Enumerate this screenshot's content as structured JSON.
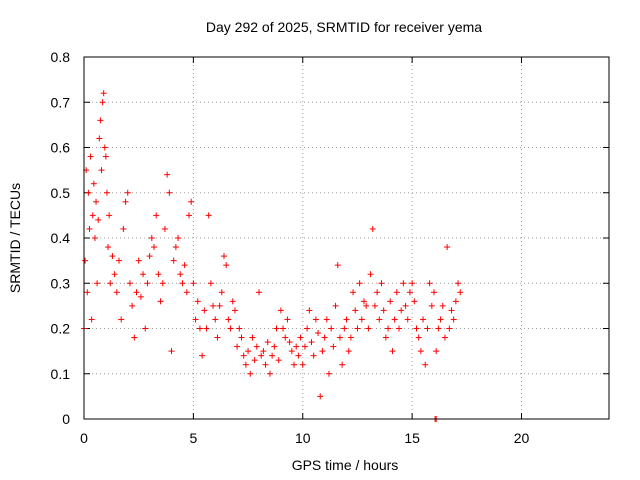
{
  "chart_data": {
    "type": "scatter",
    "title": "Day 292 of 2025, SRMTID for receiver yema",
    "xlabel": "GPS time / hours",
    "ylabel": "SRMTID / TECUs",
    "xlim": [
      0,
      24
    ],
    "ylim": [
      0,
      0.8
    ],
    "xticks": [
      0,
      5,
      10,
      15,
      20
    ],
    "yticks": [
      0,
      0.1,
      0.2,
      0.3,
      0.4,
      0.5,
      0.6,
      0.7,
      0.8
    ],
    "xtick_labels": [
      "0",
      "5",
      "10",
      "15",
      "20"
    ],
    "ytick_labels": [
      "0",
      "0.1",
      "0.2",
      "0.3",
      "0.4",
      "0.5",
      "0.6",
      "0.7",
      "0.8"
    ],
    "grid": true,
    "marker": "+",
    "color": "#ff0000",
    "series": [
      {
        "name": "SRMTID",
        "points": [
          [
            0.0,
            0.2
          ],
          [
            0.05,
            0.35
          ],
          [
            0.1,
            0.55
          ],
          [
            0.15,
            0.28
          ],
          [
            0.2,
            0.5
          ],
          [
            0.25,
            0.42
          ],
          [
            0.3,
            0.58
          ],
          [
            0.35,
            0.22
          ],
          [
            0.4,
            0.45
          ],
          [
            0.45,
            0.52
          ],
          [
            0.5,
            0.4
          ],
          [
            0.55,
            0.48
          ],
          [
            0.6,
            0.3
          ],
          [
            0.65,
            0.44
          ],
          [
            0.7,
            0.62
          ],
          [
            0.75,
            0.66
          ],
          [
            0.8,
            0.55
          ],
          [
            0.85,
            0.7
          ],
          [
            0.9,
            0.72
          ],
          [
            0.95,
            0.6
          ],
          [
            1.0,
            0.58
          ],
          [
            1.05,
            0.5
          ],
          [
            1.1,
            0.38
          ],
          [
            1.15,
            0.45
          ],
          [
            1.2,
            0.3
          ],
          [
            1.3,
            0.36
          ],
          [
            1.4,
            0.32
          ],
          [
            1.5,
            0.28
          ],
          [
            1.6,
            0.35
          ],
          [
            1.7,
            0.22
          ],
          [
            1.8,
            0.42
          ],
          [
            1.9,
            0.48
          ],
          [
            2.0,
            0.5
          ],
          [
            2.1,
            0.3
          ],
          [
            2.2,
            0.25
          ],
          [
            2.3,
            0.18
          ],
          [
            2.4,
            0.28
          ],
          [
            2.5,
            0.35
          ],
          [
            2.6,
            0.27
          ],
          [
            2.7,
            0.32
          ],
          [
            2.8,
            0.2
          ],
          [
            2.9,
            0.3
          ],
          [
            3.0,
            0.36
          ],
          [
            3.1,
            0.4
          ],
          [
            3.2,
            0.38
          ],
          [
            3.3,
            0.45
          ],
          [
            3.4,
            0.32
          ],
          [
            3.5,
            0.26
          ],
          [
            3.6,
            0.3
          ],
          [
            3.7,
            0.42
          ],
          [
            3.8,
            0.54
          ],
          [
            3.9,
            0.5
          ],
          [
            4.0,
            0.15
          ],
          [
            4.1,
            0.35
          ],
          [
            4.2,
            0.38
          ],
          [
            4.3,
            0.4
          ],
          [
            4.4,
            0.32
          ],
          [
            4.5,
            0.3
          ],
          [
            4.6,
            0.34
          ],
          [
            4.7,
            0.28
          ],
          [
            4.8,
            0.45
          ],
          [
            4.9,
            0.48
          ],
          [
            5.0,
            0.3
          ],
          [
            5.1,
            0.22
          ],
          [
            5.2,
            0.26
          ],
          [
            5.3,
            0.2
          ],
          [
            5.4,
            0.14
          ],
          [
            5.5,
            0.24
          ],
          [
            5.6,
            0.2
          ],
          [
            5.7,
            0.45
          ],
          [
            5.8,
            0.3
          ],
          [
            5.9,
            0.25
          ],
          [
            6.0,
            0.22
          ],
          [
            6.1,
            0.18
          ],
          [
            6.2,
            0.25
          ],
          [
            6.3,
            0.28
          ],
          [
            6.4,
            0.36
          ],
          [
            6.5,
            0.34
          ],
          [
            6.6,
            0.22
          ],
          [
            6.7,
            0.2
          ],
          [
            6.8,
            0.26
          ],
          [
            6.9,
            0.24
          ],
          [
            7.0,
            0.16
          ],
          [
            7.1,
            0.2
          ],
          [
            7.2,
            0.18
          ],
          [
            7.3,
            0.14
          ],
          [
            7.4,
            0.12
          ],
          [
            7.5,
            0.15
          ],
          [
            7.6,
            0.1
          ],
          [
            7.7,
            0.18
          ],
          [
            7.8,
            0.13
          ],
          [
            7.9,
            0.16
          ],
          [
            8.0,
            0.28
          ],
          [
            8.1,
            0.14
          ],
          [
            8.2,
            0.15
          ],
          [
            8.3,
            0.12
          ],
          [
            8.4,
            0.17
          ],
          [
            8.5,
            0.1
          ],
          [
            8.6,
            0.14
          ],
          [
            8.7,
            0.16
          ],
          [
            8.8,
            0.2
          ],
          [
            8.9,
            0.13
          ],
          [
            9.0,
            0.24
          ],
          [
            9.1,
            0.2
          ],
          [
            9.2,
            0.18
          ],
          [
            9.3,
            0.22
          ],
          [
            9.4,
            0.17
          ],
          [
            9.5,
            0.15
          ],
          [
            9.6,
            0.12
          ],
          [
            9.7,
            0.16
          ],
          [
            9.8,
            0.14
          ],
          [
            9.9,
            0.18
          ],
          [
            10.0,
            0.12
          ],
          [
            10.1,
            0.16
          ],
          [
            10.2,
            0.2
          ],
          [
            10.3,
            0.24
          ],
          [
            10.4,
            0.17
          ],
          [
            10.5,
            0.14
          ],
          [
            10.6,
            0.22
          ],
          [
            10.7,
            0.19
          ],
          [
            10.8,
            0.05
          ],
          [
            10.9,
            0.15
          ],
          [
            11.0,
            0.18
          ],
          [
            11.1,
            0.22
          ],
          [
            11.2,
            0.1
          ],
          [
            11.3,
            0.2
          ],
          [
            11.4,
            0.16
          ],
          [
            11.5,
            0.25
          ],
          [
            11.6,
            0.34
          ],
          [
            11.7,
            0.18
          ],
          [
            11.8,
            0.12
          ],
          [
            11.9,
            0.2
          ],
          [
            12.0,
            0.22
          ],
          [
            12.1,
            0.15
          ],
          [
            12.2,
            0.18
          ],
          [
            12.3,
            0.28
          ],
          [
            12.4,
            0.24
          ],
          [
            12.5,
            0.2
          ],
          [
            12.6,
            0.3
          ],
          [
            12.7,
            0.22
          ],
          [
            12.8,
            0.26
          ],
          [
            12.9,
            0.25
          ],
          [
            13.0,
            0.2
          ],
          [
            13.1,
            0.32
          ],
          [
            13.2,
            0.42
          ],
          [
            13.3,
            0.25
          ],
          [
            13.4,
            0.28
          ],
          [
            13.5,
            0.22
          ],
          [
            13.6,
            0.3
          ],
          [
            13.7,
            0.24
          ],
          [
            13.8,
            0.18
          ],
          [
            13.9,
            0.2
          ],
          [
            14.0,
            0.26
          ],
          [
            14.1,
            0.15
          ],
          [
            14.2,
            0.22
          ],
          [
            14.3,
            0.28
          ],
          [
            14.4,
            0.2
          ],
          [
            14.5,
            0.24
          ],
          [
            14.6,
            0.3
          ],
          [
            14.7,
            0.25
          ],
          [
            14.8,
            0.22
          ],
          [
            14.9,
            0.28
          ],
          [
            15.0,
            0.3
          ],
          [
            15.1,
            0.26
          ],
          [
            15.2,
            0.2
          ],
          [
            15.3,
            0.18
          ],
          [
            15.4,
            0.15
          ],
          [
            15.5,
            0.22
          ],
          [
            15.6,
            0.12
          ],
          [
            15.7,
            0.2
          ],
          [
            15.8,
            0.3
          ],
          [
            15.9,
            0.25
          ],
          [
            16.0,
            0.28
          ],
          [
            16.1,
            0.15
          ],
          [
            16.2,
            0.2
          ],
          [
            16.3,
            0.22
          ],
          [
            16.4,
            0.25
          ],
          [
            16.5,
            0.18
          ],
          [
            16.6,
            0.38
          ],
          [
            16.7,
            0.2
          ],
          [
            16.8,
            0.24
          ],
          [
            16.9,
            0.22
          ],
          [
            17.0,
            0.26
          ],
          [
            17.1,
            0.3
          ],
          [
            17.2,
            0.28
          ],
          [
            16.05,
            0.0
          ],
          [
            16.1,
            0.0
          ]
        ]
      }
    ]
  }
}
